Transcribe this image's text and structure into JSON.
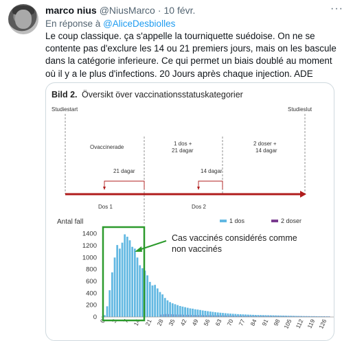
{
  "tweet": {
    "author_name": "marco nius",
    "author_handle": "@NiusMarco",
    "separator": "·",
    "date": "10 févr.",
    "more_icon": "more-horizontal-icon",
    "reply_prefix": "En réponse à",
    "reply_to": "@AliceDesbiolles",
    "text": "Le coup classique. ça s'appelle la tourniquette suédoise. On ne se contente pas d'exclure les 14 ou 21 premiers jours, mais on les bascule dans la catégorie inferieure. Ce qui permet un biais doublé au moment où il y a le plus d'infections. 20 Jours après chaque injection. ADE"
  },
  "image": {
    "title_bold": "Bild 2.",
    "title_rest": "Översikt över vaccinationsstatuskategorier",
    "timeline": {
      "start_label": "Studiestart",
      "end_label": "Studieslut",
      "seg1": "Ovaccinerade",
      "seg2_line1": "1 dos +",
      "seg2_line2": "21 dagar",
      "seg3_line1": "2 doser +",
      "seg3_line2": "14 dagar",
      "gap1_label": "21 dagar",
      "gap2_label": "14 dagar",
      "dose1_label": "Dos 1",
      "dose2_label": "Dos 2"
    },
    "annotation_line1": "Cas vaccinés considérés comme",
    "annotation_line2": "non vaccinés",
    "colors": {
      "timeline_red": "#b01c1c",
      "bar_one_dose": "#62b8e2",
      "bar_two_doses": "#7a3b8f",
      "highlight_green": "#2c9a2c"
    }
  },
  "chart_data": {
    "type": "bar",
    "ylabel": "Antal fall",
    "yticks": [
      0,
      200,
      400,
      600,
      800,
      1000,
      1200,
      1400
    ],
    "ylim": [
      0,
      1500
    ],
    "legend": [
      "1 dos",
      "2 doser"
    ],
    "xticks": [
      "0",
      "3",
      "7",
      "14",
      "21",
      "28",
      "35",
      "42",
      "49",
      "56",
      "63",
      "70",
      "77",
      "84",
      "91",
      "98",
      "105",
      "112",
      "119",
      "126"
    ],
    "series": [
      {
        "name": "1 dos",
        "values": [
          30,
          180,
          450,
          750,
          1000,
          1210,
          1150,
          1250,
          1390,
          1350,
          1290,
          1180,
          1150,
          1000,
          870,
          820,
          780,
          700,
          590,
          530,
          540,
          480,
          420,
          380,
          320,
          280,
          250,
          230,
          215,
          200,
          185,
          175,
          165,
          155,
          145,
          140,
          130,
          125,
          118,
          110,
          104,
          98,
          92,
          86,
          80,
          76,
          72,
          68,
          64,
          60,
          57,
          54,
          51,
          48,
          46,
          44,
          42,
          40,
          38,
          36,
          34,
          33,
          32,
          31,
          30,
          29,
          28,
          27,
          26,
          25,
          24,
          23,
          22,
          21,
          20,
          19,
          18,
          17,
          16,
          15,
          14,
          14,
          13,
          13,
          12,
          12,
          11,
          11,
          10,
          10
        ]
      },
      {
        "name": "2 doser",
        "values": [
          0,
          0,
          0,
          0,
          0,
          0,
          0,
          0,
          0,
          0,
          0,
          0,
          0,
          0,
          0,
          0,
          0,
          0,
          0,
          0,
          0,
          0,
          40,
          45,
          50,
          48,
          46,
          44,
          42,
          40,
          40,
          38,
          37,
          36,
          35,
          34,
          33,
          32,
          32,
          31,
          30,
          30,
          29,
          29,
          28,
          28,
          27,
          27,
          26,
          26,
          25,
          25,
          24,
          24,
          23,
          23,
          22,
          22,
          21,
          21,
          20,
          20,
          20,
          19,
          19,
          19,
          18,
          18,
          18,
          17,
          17,
          17,
          16,
          16,
          16,
          15,
          15,
          15,
          14,
          14,
          14,
          13,
          13,
          13,
          12,
          12,
          12,
          12,
          11,
          11
        ]
      }
    ]
  }
}
